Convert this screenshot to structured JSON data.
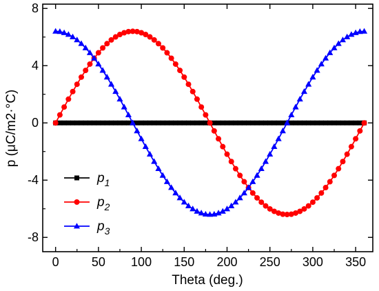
{
  "chart_data": {
    "type": "line",
    "xlabel": "Theta (deg.)",
    "ylabel": "p (μC/m2·°C)",
    "xlim": [
      -15,
      370
    ],
    "ylim": [
      -9,
      8.3
    ],
    "xticks": [
      0,
      50,
      100,
      150,
      200,
      250,
      300,
      350
    ],
    "yticks": [
      -8,
      -4,
      0,
      4,
      8
    ],
    "x_start": 0,
    "x_end": 360,
    "x_step": 5,
    "grid": false,
    "legend_position": "bottom-left",
    "series": [
      {
        "name": "p1",
        "name_main": "p",
        "name_sub": "1",
        "color": "#000000",
        "marker": "square",
        "values": [
          0,
          0,
          0,
          0,
          0,
          0,
          0,
          0,
          0,
          0,
          0,
          0,
          0,
          0,
          0,
          0,
          0,
          0,
          0,
          0,
          0,
          0,
          0,
          0,
          0,
          0,
          0,
          0,
          0,
          0,
          0,
          0,
          0,
          0,
          0,
          0,
          0,
          0,
          0,
          0,
          0,
          0,
          0,
          0,
          0,
          0,
          0,
          0,
          0,
          0,
          0,
          0,
          0,
          0,
          0,
          0,
          0,
          0,
          0,
          0,
          0,
          0,
          0,
          0,
          0,
          0,
          0,
          0,
          0,
          0,
          0,
          0,
          0
        ]
      },
      {
        "name": "p2",
        "name_main": "p",
        "name_sub": "2",
        "color": "#ff0000",
        "marker": "circle",
        "values": [
          0,
          0.56,
          1.11,
          1.66,
          2.19,
          2.7,
          3.2,
          3.67,
          4.11,
          4.52,
          4.9,
          5.24,
          5.54,
          5.8,
          6.01,
          6.18,
          6.3,
          6.38,
          6.4,
          6.38,
          6.3,
          6.18,
          6.01,
          5.8,
          5.54,
          5.24,
          4.9,
          4.52,
          4.11,
          3.67,
          3.2,
          2.7,
          2.19,
          1.66,
          1.11,
          0.56,
          0,
          -0.56,
          -1.11,
          -1.66,
          -2.19,
          -2.7,
          -3.2,
          -3.67,
          -4.11,
          -4.52,
          -4.9,
          -5.24,
          -5.54,
          -5.8,
          -6.01,
          -6.18,
          -6.3,
          -6.38,
          -6.4,
          -6.38,
          -6.3,
          -6.18,
          -6.01,
          -5.8,
          -5.54,
          -5.24,
          -4.9,
          -4.52,
          -4.11,
          -3.67,
          -3.2,
          -2.7,
          -2.19,
          -1.66,
          -1.11,
          -0.56,
          0
        ]
      },
      {
        "name": "p3",
        "name_main": "p",
        "name_sub": "3",
        "color": "#0000ff",
        "marker": "triangle",
        "values": [
          6.4,
          6.38,
          6.3,
          6.18,
          6.01,
          5.8,
          5.54,
          5.24,
          4.9,
          4.52,
          4.11,
          3.67,
          3.2,
          2.7,
          2.19,
          1.66,
          1.11,
          0.56,
          0,
          -0.56,
          -1.11,
          -1.66,
          -2.19,
          -2.7,
          -3.2,
          -3.67,
          -4.11,
          -4.52,
          -4.9,
          -5.24,
          -5.54,
          -5.8,
          -6.01,
          -6.18,
          -6.3,
          -6.38,
          -6.4,
          -6.38,
          -6.3,
          -6.18,
          -6.01,
          -5.8,
          -5.54,
          -5.24,
          -4.9,
          -4.52,
          -4.11,
          -3.67,
          -3.2,
          -2.7,
          -2.19,
          -1.66,
          -1.11,
          -0.56,
          0,
          0.56,
          1.11,
          1.66,
          2.19,
          2.7,
          3.2,
          3.67,
          4.11,
          4.52,
          4.9,
          5.24,
          5.54,
          5.8,
          6.01,
          6.18,
          6.3,
          6.38,
          6.4
        ]
      }
    ]
  }
}
